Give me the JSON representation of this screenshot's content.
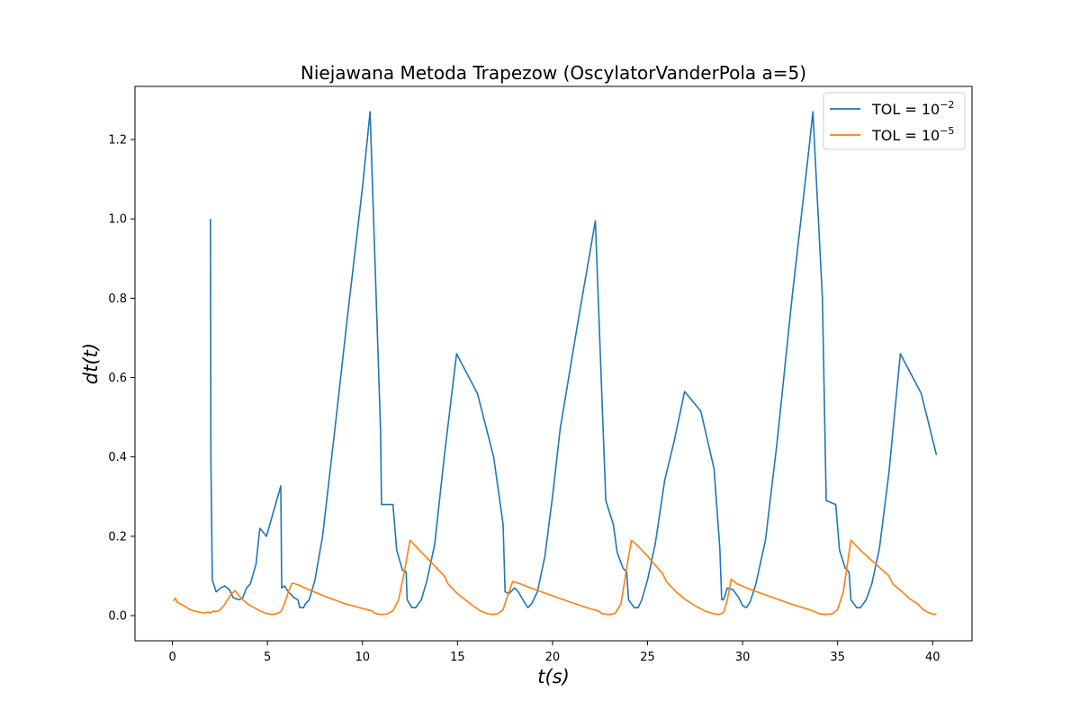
{
  "chart_data": {
    "type": "line",
    "title": "Niejawana Metoda Trapezow (OscylatorVanderPola a=5)",
    "xlabel": "t(s)",
    "ylabel": "dt(t)",
    "xlim": [
      -1.97,
      42.07
    ],
    "ylim": [
      -0.0635,
      1.334
    ],
    "xticks": [
      0,
      5,
      10,
      15,
      20,
      25,
      30,
      35,
      40
    ],
    "xtick_labels": [
      "0",
      "5",
      "10",
      "15",
      "20",
      "25",
      "30",
      "35",
      "40"
    ],
    "yticks": [
      0.0,
      0.2,
      0.4,
      0.6,
      0.8,
      1.0,
      1.2
    ],
    "ytick_labels": [
      "0.0",
      "0.2",
      "0.4",
      "0.6",
      "0.8",
      "1.0",
      "1.2"
    ],
    "grid": false,
    "legend_position": "top-right",
    "series": [
      {
        "name": "TOL = 10^-2",
        "legend_base": "TOL = 10",
        "legend_exp": "−2",
        "color": "#1f77b4",
        "points": [
          [
            2.0,
            1.0
          ],
          [
            2.02,
            0.4
          ],
          [
            2.1,
            0.09
          ],
          [
            2.3,
            0.06
          ],
          [
            2.55,
            0.07
          ],
          [
            2.75,
            0.075
          ],
          [
            3.0,
            0.065
          ],
          [
            3.2,
            0.045
          ],
          [
            3.5,
            0.04
          ],
          [
            3.7,
            0.045
          ],
          [
            3.9,
            0.07
          ],
          [
            4.1,
            0.08
          ],
          [
            4.4,
            0.13
          ],
          [
            4.6,
            0.22
          ],
          [
            4.95,
            0.2
          ],
          [
            5.7,
            0.327
          ],
          [
            5.75,
            0.07
          ],
          [
            5.9,
            0.075
          ],
          [
            6.1,
            0.06
          ],
          [
            6.4,
            0.045
          ],
          [
            6.6,
            0.04
          ],
          [
            6.7,
            0.02
          ],
          [
            6.9,
            0.02
          ],
          [
            7.0,
            0.03
          ],
          [
            7.2,
            0.04
          ],
          [
            7.5,
            0.09
          ],
          [
            7.9,
            0.2
          ],
          [
            8.5,
            0.45
          ],
          [
            9.2,
            0.75
          ],
          [
            10.0,
            1.08
          ],
          [
            10.4,
            1.27
          ],
          [
            10.95,
            0.47
          ],
          [
            11.0,
            0.28
          ],
          [
            11.6,
            0.28
          ],
          [
            11.8,
            0.165
          ],
          [
            12.1,
            0.115
          ],
          [
            12.3,
            0.11
          ],
          [
            12.35,
            0.04
          ],
          [
            12.6,
            0.02
          ],
          [
            12.8,
            0.02
          ],
          [
            13.1,
            0.04
          ],
          [
            13.4,
            0.09
          ],
          [
            13.8,
            0.18
          ],
          [
            14.3,
            0.4
          ],
          [
            14.95,
            0.66
          ],
          [
            16.05,
            0.56
          ],
          [
            16.9,
            0.4
          ],
          [
            17.4,
            0.23
          ],
          [
            17.5,
            0.06
          ],
          [
            17.7,
            0.055
          ],
          [
            18.0,
            0.07
          ],
          [
            18.2,
            0.06
          ],
          [
            18.5,
            0.035
          ],
          [
            18.7,
            0.02
          ],
          [
            18.9,
            0.03
          ],
          [
            19.2,
            0.06
          ],
          [
            19.6,
            0.15
          ],
          [
            20.0,
            0.3
          ],
          [
            20.4,
            0.47
          ],
          [
            21.3,
            0.73
          ],
          [
            22.25,
            0.995
          ],
          [
            22.8,
            0.29
          ],
          [
            23.2,
            0.23
          ],
          [
            23.4,
            0.16
          ],
          [
            23.7,
            0.12
          ],
          [
            23.9,
            0.11
          ],
          [
            24.0,
            0.04
          ],
          [
            24.3,
            0.02
          ],
          [
            24.5,
            0.02
          ],
          [
            24.7,
            0.04
          ],
          [
            25.0,
            0.09
          ],
          [
            25.4,
            0.18
          ],
          [
            25.9,
            0.34
          ],
          [
            26.4,
            0.44
          ],
          [
            26.95,
            0.565
          ],
          [
            27.8,
            0.515
          ],
          [
            28.5,
            0.37
          ],
          [
            28.8,
            0.17
          ],
          [
            28.9,
            0.04
          ],
          [
            29.0,
            0.04
          ],
          [
            29.2,
            0.07
          ],
          [
            29.5,
            0.065
          ],
          [
            29.8,
            0.045
          ],
          [
            30.0,
            0.025
          ],
          [
            30.2,
            0.02
          ],
          [
            30.4,
            0.035
          ],
          [
            30.7,
            0.08
          ],
          [
            31.2,
            0.19
          ],
          [
            31.8,
            0.43
          ],
          [
            32.6,
            0.8
          ],
          [
            33.5,
            1.18
          ],
          [
            33.7,
            1.27
          ],
          [
            34.2,
            0.8
          ],
          [
            34.4,
            0.29
          ],
          [
            34.9,
            0.28
          ],
          [
            35.1,
            0.165
          ],
          [
            35.4,
            0.12
          ],
          [
            35.6,
            0.11
          ],
          [
            35.7,
            0.04
          ],
          [
            36.0,
            0.02
          ],
          [
            36.2,
            0.02
          ],
          [
            36.5,
            0.04
          ],
          [
            36.8,
            0.08
          ],
          [
            37.2,
            0.17
          ],
          [
            37.7,
            0.36
          ],
          [
            38.3,
            0.66
          ],
          [
            39.4,
            0.56
          ],
          [
            40.2,
            0.405
          ]
        ]
      },
      {
        "name": "TOL = 10^-5",
        "legend_base": "TOL = 10",
        "legend_exp": "−5",
        "color": "#ff7f0e",
        "points": [
          [
            0.05,
            0.036
          ],
          [
            0.15,
            0.044
          ],
          [
            0.25,
            0.034
          ],
          [
            0.4,
            0.03
          ],
          [
            0.55,
            0.026
          ],
          [
            0.7,
            0.022
          ],
          [
            0.9,
            0.016
          ],
          [
            1.1,
            0.012
          ],
          [
            1.3,
            0.01
          ],
          [
            1.5,
            0.008
          ],
          [
            1.7,
            0.007
          ],
          [
            1.9,
            0.009
          ],
          [
            2.0,
            0.006
          ],
          [
            2.1,
            0.011
          ],
          [
            2.3,
            0.01
          ],
          [
            2.5,
            0.014
          ],
          [
            2.7,
            0.025
          ],
          [
            2.9,
            0.04
          ],
          [
            3.1,
            0.055
          ],
          [
            3.3,
            0.063
          ],
          [
            3.5,
            0.05
          ],
          [
            3.7,
            0.04
          ],
          [
            4.0,
            0.028
          ],
          [
            4.3,
            0.02
          ],
          [
            4.6,
            0.012
          ],
          [
            4.9,
            0.006
          ],
          [
            5.1,
            0.004
          ],
          [
            5.3,
            0.003
          ],
          [
            5.5,
            0.005
          ],
          [
            5.7,
            0.01
          ],
          [
            5.9,
            0.03
          ],
          [
            6.1,
            0.06
          ],
          [
            6.3,
            0.082
          ],
          [
            6.6,
            0.078
          ],
          [
            7.0,
            0.069
          ],
          [
            8.0,
            0.049
          ],
          [
            9.0,
            0.031
          ],
          [
            10.0,
            0.018
          ],
          [
            10.5,
            0.012
          ],
          [
            10.6,
            0.007
          ],
          [
            10.8,
            0.004
          ],
          [
            11.0,
            0.003
          ],
          [
            11.3,
            0.004
          ],
          [
            11.6,
            0.012
          ],
          [
            11.9,
            0.04
          ],
          [
            12.2,
            0.11
          ],
          [
            12.5,
            0.19
          ],
          [
            12.8,
            0.175
          ],
          [
            13.2,
            0.155
          ],
          [
            13.7,
            0.13
          ],
          [
            14.3,
            0.1
          ],
          [
            14.5,
            0.08
          ],
          [
            15.0,
            0.055
          ],
          [
            15.4,
            0.04
          ],
          [
            15.8,
            0.025
          ],
          [
            16.2,
            0.012
          ],
          [
            16.5,
            0.006
          ],
          [
            16.8,
            0.003
          ],
          [
            17.1,
            0.004
          ],
          [
            17.4,
            0.015
          ],
          [
            17.6,
            0.045
          ],
          [
            17.9,
            0.086
          ],
          [
            18.3,
            0.08
          ],
          [
            19.0,
            0.067
          ],
          [
            20.0,
            0.05
          ],
          [
            21.0,
            0.033
          ],
          [
            22.0,
            0.017
          ],
          [
            22.4,
            0.012
          ],
          [
            22.6,
            0.005
          ],
          [
            23.0,
            0.003
          ],
          [
            23.3,
            0.006
          ],
          [
            23.6,
            0.03
          ],
          [
            23.9,
            0.12
          ],
          [
            24.15,
            0.19
          ],
          [
            24.5,
            0.175
          ],
          [
            25.0,
            0.15
          ],
          [
            25.8,
            0.105
          ],
          [
            26.0,
            0.085
          ],
          [
            26.5,
            0.06
          ],
          [
            27.0,
            0.04
          ],
          [
            27.5,
            0.025
          ],
          [
            28.0,
            0.012
          ],
          [
            28.5,
            0.004
          ],
          [
            28.8,
            0.003
          ],
          [
            29.0,
            0.008
          ],
          [
            29.2,
            0.04
          ],
          [
            29.4,
            0.092
          ],
          [
            29.7,
            0.08
          ],
          [
            30.5,
            0.064
          ],
          [
            31.5,
            0.047
          ],
          [
            32.5,
            0.03
          ],
          [
            33.5,
            0.015
          ],
          [
            33.8,
            0.01
          ],
          [
            34.0,
            0.005
          ],
          [
            34.3,
            0.003
          ],
          [
            34.7,
            0.004
          ],
          [
            35.0,
            0.015
          ],
          [
            35.3,
            0.06
          ],
          [
            35.7,
            0.19
          ],
          [
            36.2,
            0.165
          ],
          [
            37.0,
            0.13
          ],
          [
            37.7,
            0.1
          ],
          [
            37.9,
            0.08
          ],
          [
            38.4,
            0.06
          ],
          [
            38.8,
            0.042
          ],
          [
            39.2,
            0.03
          ],
          [
            39.5,
            0.015
          ],
          [
            39.8,
            0.007
          ],
          [
            40.0,
            0.004
          ],
          [
            40.1,
            0.003
          ],
          [
            40.2,
            0.005
          ]
        ]
      }
    ]
  }
}
